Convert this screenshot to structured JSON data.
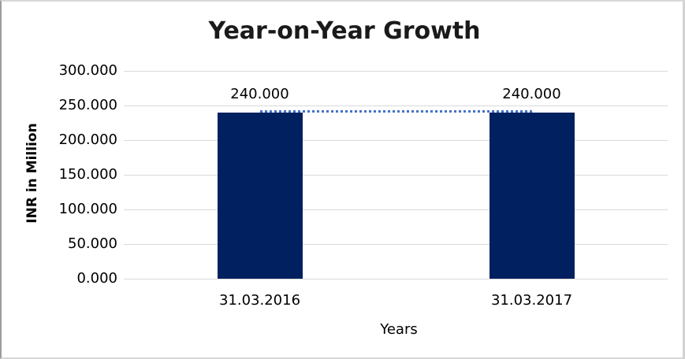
{
  "window": {
    "background": "#FFFFFF",
    "border_color": "#D7D7D7",
    "border_left_color": "#9C9C9C"
  },
  "chart_data": {
    "type": "bar",
    "title": "Year-on-Year Growth",
    "xlabel": "Years",
    "ylabel": "INR in Million",
    "categories": [
      "31.03.2016",
      "31.03.2017"
    ],
    "series": [
      {
        "name": "INR in Million",
        "values": [
          240,
          240
        ]
      }
    ],
    "data_labels": [
      "240.000",
      "240.000"
    ],
    "y_ticks": [
      {
        "value": 300,
        "label": "300.000"
      },
      {
        "value": 250,
        "label": "250.000"
      },
      {
        "value": 200,
        "label": "200.000"
      },
      {
        "value": 150,
        "label": "150.000"
      },
      {
        "value": 100,
        "label": "100.000"
      },
      {
        "value": 50,
        "label": "50.000"
      },
      {
        "value": 0,
        "label": "0.000"
      }
    ],
    "ylim": [
      0,
      300
    ],
    "grid": true,
    "legend_position": "none",
    "trendline": {
      "style": "dotted",
      "color": "#4472C4",
      "from_value": 240,
      "to_value": 240
    },
    "colors": {
      "bar": "#002060",
      "gridline": "#D9D9D9",
      "text": "#000000",
      "title_text": "#1A1A1A"
    }
  }
}
